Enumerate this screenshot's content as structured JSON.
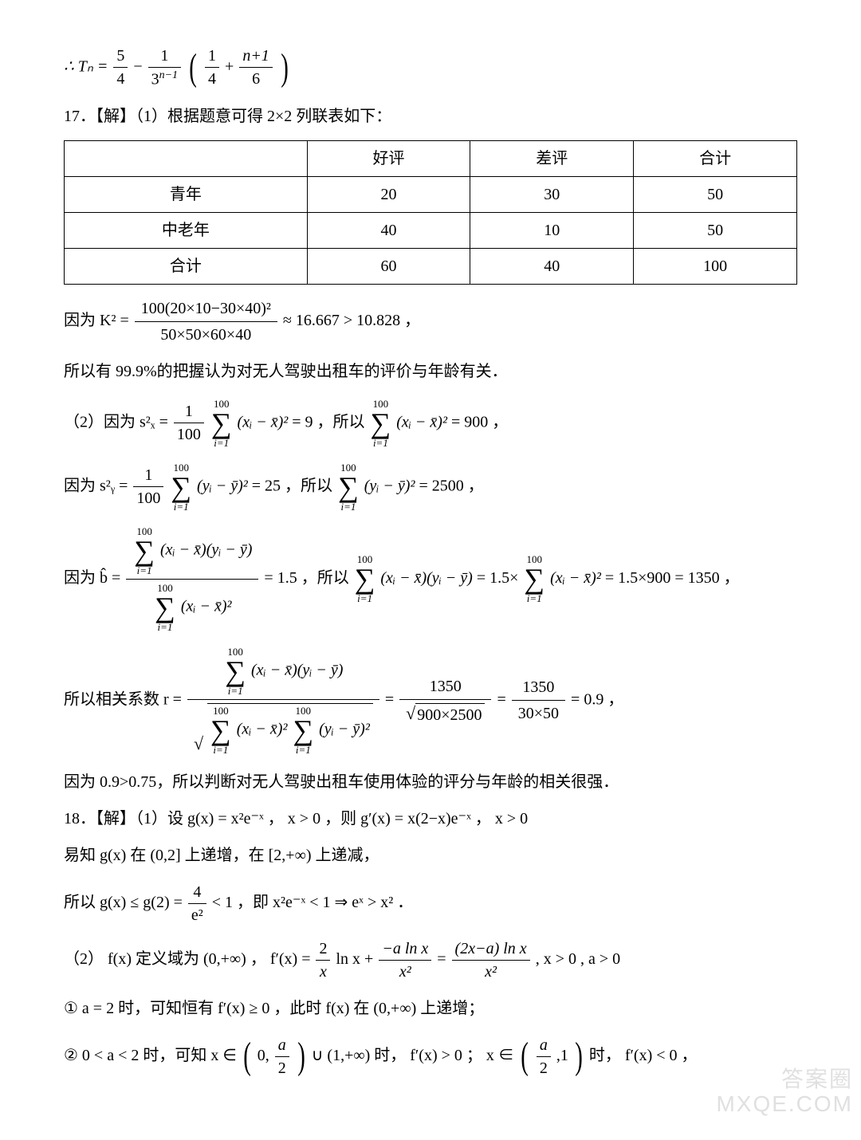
{
  "eq_Tn": {
    "prefix": "∴ Tₙ =",
    "term1_num": "5",
    "term1_den": "4",
    "minus": "−",
    "coef_num": "1",
    "coef_den": "3",
    "coef_den_exp": "n−1",
    "inner_a_num": "1",
    "inner_a_den": "4",
    "plus": "+",
    "inner_b_num": "n+1",
    "inner_b_den": "6"
  },
  "q17": {
    "heading": "17．【解】（1）根据题意可得 2×2 列联表如下：",
    "table": {
      "columns": [
        "",
        "好评",
        "差评",
        "合计"
      ],
      "rows": [
        [
          "青年",
          "20",
          "30",
          "50"
        ],
        [
          "中老年",
          "40",
          "10",
          "50"
        ],
        [
          "合计",
          "60",
          "40",
          "100"
        ]
      ]
    },
    "k2": {
      "prefix": "因为 K² =",
      "num": "100(20×10−30×40)²",
      "den": "50×50×60×40",
      "tail": "≈ 16.667 > 10.828 ，"
    },
    "conclusion1": "所以有 99.9%的把握认为对无人驾驶出租车的评价与年龄有关．",
    "sx": {
      "prefix": "（2）因为 s²ₓ =",
      "frac_num": "1",
      "frac_den": "100",
      "sum_top": "100",
      "sum_bot": "i=1",
      "body": "(xᵢ − x̄)²",
      "eq": "= 9 ，所以",
      "body2": "(xᵢ − x̄)²",
      "eq2": "= 900 ，"
    },
    "sy": {
      "prefix": "因为 s²ᵧ =",
      "frac_num": "1",
      "frac_den": "100",
      "body": "(yᵢ − ȳ)²",
      "eq": "= 25 ，所以",
      "body2": "(yᵢ − ȳ)²",
      "eq2": "= 2500 ，"
    },
    "bhat": {
      "prefix": "因为 b̂ =",
      "num_body": "(xᵢ − x̄)(yᵢ − ȳ)",
      "den_body": "(xᵢ − x̄)²",
      "eq": "= 1.5 ，所以",
      "mid_body": "(xᵢ − x̄)(yᵢ − ȳ)",
      "eq2": "= 1.5×",
      "tail_body": "(xᵢ − x̄)²",
      "tail": "= 1.5×900 = 1350 ，"
    },
    "r": {
      "prefix": "所以相关系数 r =",
      "num_body": "(xᵢ − x̄)(yᵢ − ȳ)",
      "den_left": "(xᵢ − x̄)²",
      "den_right": "(yᵢ − ȳ)²",
      "eq1": "=",
      "frac2_num": "1350",
      "frac2_den_inner": "900×2500",
      "eq2": "=",
      "frac3_num": "1350",
      "frac3_den": "30×50",
      "eq3": "= 0.9 ，"
    },
    "conclusion2": "因为 0.9>0.75，所以判断对无人驾驶出租车使用体验的评分与年龄的相关很强．"
  },
  "q18": {
    "line1_a": "18．【解】（1）设 g(x) = x²e⁻ˣ ， x > 0 ，则 g′(x) = x(2−x)e⁻ˣ ， x > 0",
    "line2": "易知 g(x) 在 (0,2] 上递增，在 [2,+∞) 上递减，",
    "line3_prefix": "所以 g(x) ≤ g(2) =",
    "line3_frac_num": "4",
    "line3_frac_den": "e²",
    "line3_tail": "< 1 ，即 x²e⁻ˣ < 1 ⇒ eˣ > x² ．",
    "line4_prefix": "（2） f(x) 定义域为 (0,+∞) ， f′(x) =",
    "line4_t1_num": "2",
    "line4_t1_den": "x",
    "line4_t1_tail": "ln x +",
    "line4_t2_num": "−a ln x",
    "line4_t2_den": "x²",
    "line4_eq": "=",
    "line4_t3_num": "(2x−a) ln x",
    "line4_t3_den": "x²",
    "line4_tail": ", x > 0 , a > 0",
    "line5": "① a = 2 时，可知恒有 f′(x) ≥ 0 ，此时 f(x) 在 (0,+∞) 上递增；",
    "line6_prefix": "② 0 < a < 2 时，可知 x ∈",
    "line6_int1_a": "0,",
    "line6_int1_b_num": "a",
    "line6_int1_b_den": "2",
    "line6_mid": "∪ (1,+∞) 时， f′(x) > 0 ； x ∈",
    "line6_int2_a_num": "a",
    "line6_int2_a_den": "2",
    "line6_int2_b": ",1",
    "line6_tail": "时， f′(x) < 0 ，"
  },
  "watermark": {
    "line1": "答案圈",
    "line2": "MXQE.COM"
  },
  "style": {
    "page_bg": "#ffffff",
    "text_color": "#000000",
    "table_border": "#000000",
    "font_size_body": 20,
    "font_size_watermark": 28,
    "watermark_color": "#e0e0e0"
  }
}
